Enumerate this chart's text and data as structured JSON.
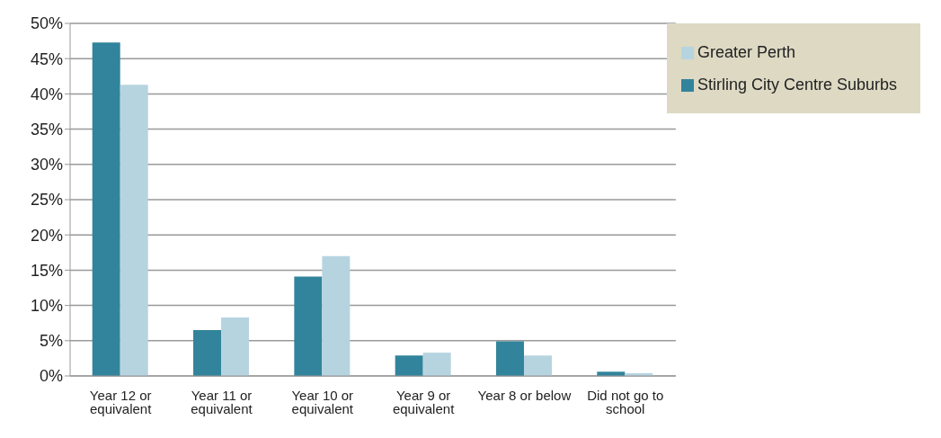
{
  "chart_data": {
    "type": "bar",
    "categories": [
      "Year 12 or equivalent",
      "Year 11 or equivalent",
      "Year 10 or equivalent",
      "Year 9 or equivalent",
      "Year 8 or below",
      "Did not go to school"
    ],
    "series": [
      {
        "name": "Stirling City Centre Suburbs",
        "color": "#31849b",
        "values": [
          47.3,
          6.5,
          14.1,
          2.9,
          4.9,
          0.6
        ]
      },
      {
        "name": "Greater Perth",
        "color": "#b6d4e0",
        "values": [
          41.3,
          8.3,
          17.0,
          3.3,
          2.9,
          0.4
        ]
      }
    ],
    "ylim": [
      0,
      50
    ],
    "yticks": [
      {
        "value": 0,
        "label": "0%"
      },
      {
        "value": 5,
        "label": "5%"
      },
      {
        "value": 10,
        "label": "10%"
      },
      {
        "value": 15,
        "label": "15%"
      },
      {
        "value": 20,
        "label": "20%"
      },
      {
        "value": 25,
        "label": "25%"
      },
      {
        "value": 30,
        "label": "30%"
      },
      {
        "value": 35,
        "label": "35%"
      },
      {
        "value": 40,
        "label": "40%"
      },
      {
        "value": 45,
        "label": "45%"
      },
      {
        "value": 50,
        "label": "50%"
      }
    ],
    "grid": "y",
    "legend": "top right"
  }
}
